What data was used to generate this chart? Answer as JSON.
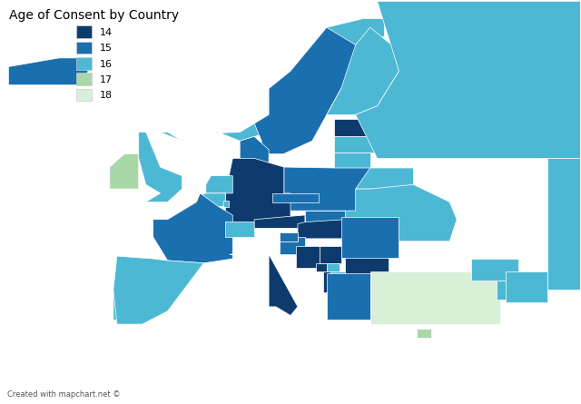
{
  "title": "Age of Consent by Country",
  "title_fontsize": 10,
  "credit": "Created with mapchart.net ©",
  "credit_fontsize": 6,
  "legend_ages": [
    14,
    15,
    16,
    17,
    18
  ],
  "colors": {
    "14": "#0d3b6e",
    "15": "#1a6faf",
    "16": "#4db8d4",
    "17": "#a8d8a8",
    "18": "#d8efd8",
    "no_data": "#b8b8b8",
    "border": "#ffffff"
  },
  "age_of_consent": {
    "Iceland": 15,
    "Norway": 16,
    "Sweden": 15,
    "Finland": 16,
    "Denmark": 15,
    "Estonia": 14,
    "Latvia": 16,
    "Lithuania": 16,
    "Russia": 16,
    "Belarus": 16,
    "Ukraine": 16,
    "Moldova": 16,
    "Poland": 15,
    "Germany": 14,
    "Netherlands": 16,
    "Belgium": 16,
    "Luxembourg": 16,
    "France": 15,
    "United Kingdom": 16,
    "Ireland": 17,
    "Portugal": 16,
    "Spain": 16,
    "Italy": 14,
    "Switzerland": 16,
    "Austria": 14,
    "Czech Republic": 15,
    "Slovakia": 15,
    "Hungary": 14,
    "Slovenia": 15,
    "Croatia": 15,
    "Bosnia and Herzegovina": 14,
    "Serbia": 14,
    "Montenegro": 14,
    "Albania": 14,
    "North Macedonia": 16,
    "Bulgaria": 14,
    "Romania": 15,
    "Greece": 15,
    "Turkey": 18,
    "Cyprus": 17,
    "Malta": 16,
    "Kosovo": 16,
    "Georgia": 16,
    "Armenia": 16,
    "Azerbaijan": 16,
    "Kazakhstan": 16
  },
  "xlim": [
    -25,
    55
  ],
  "ylim": [
    27,
    73
  ],
  "background_color": "#ffffff"
}
